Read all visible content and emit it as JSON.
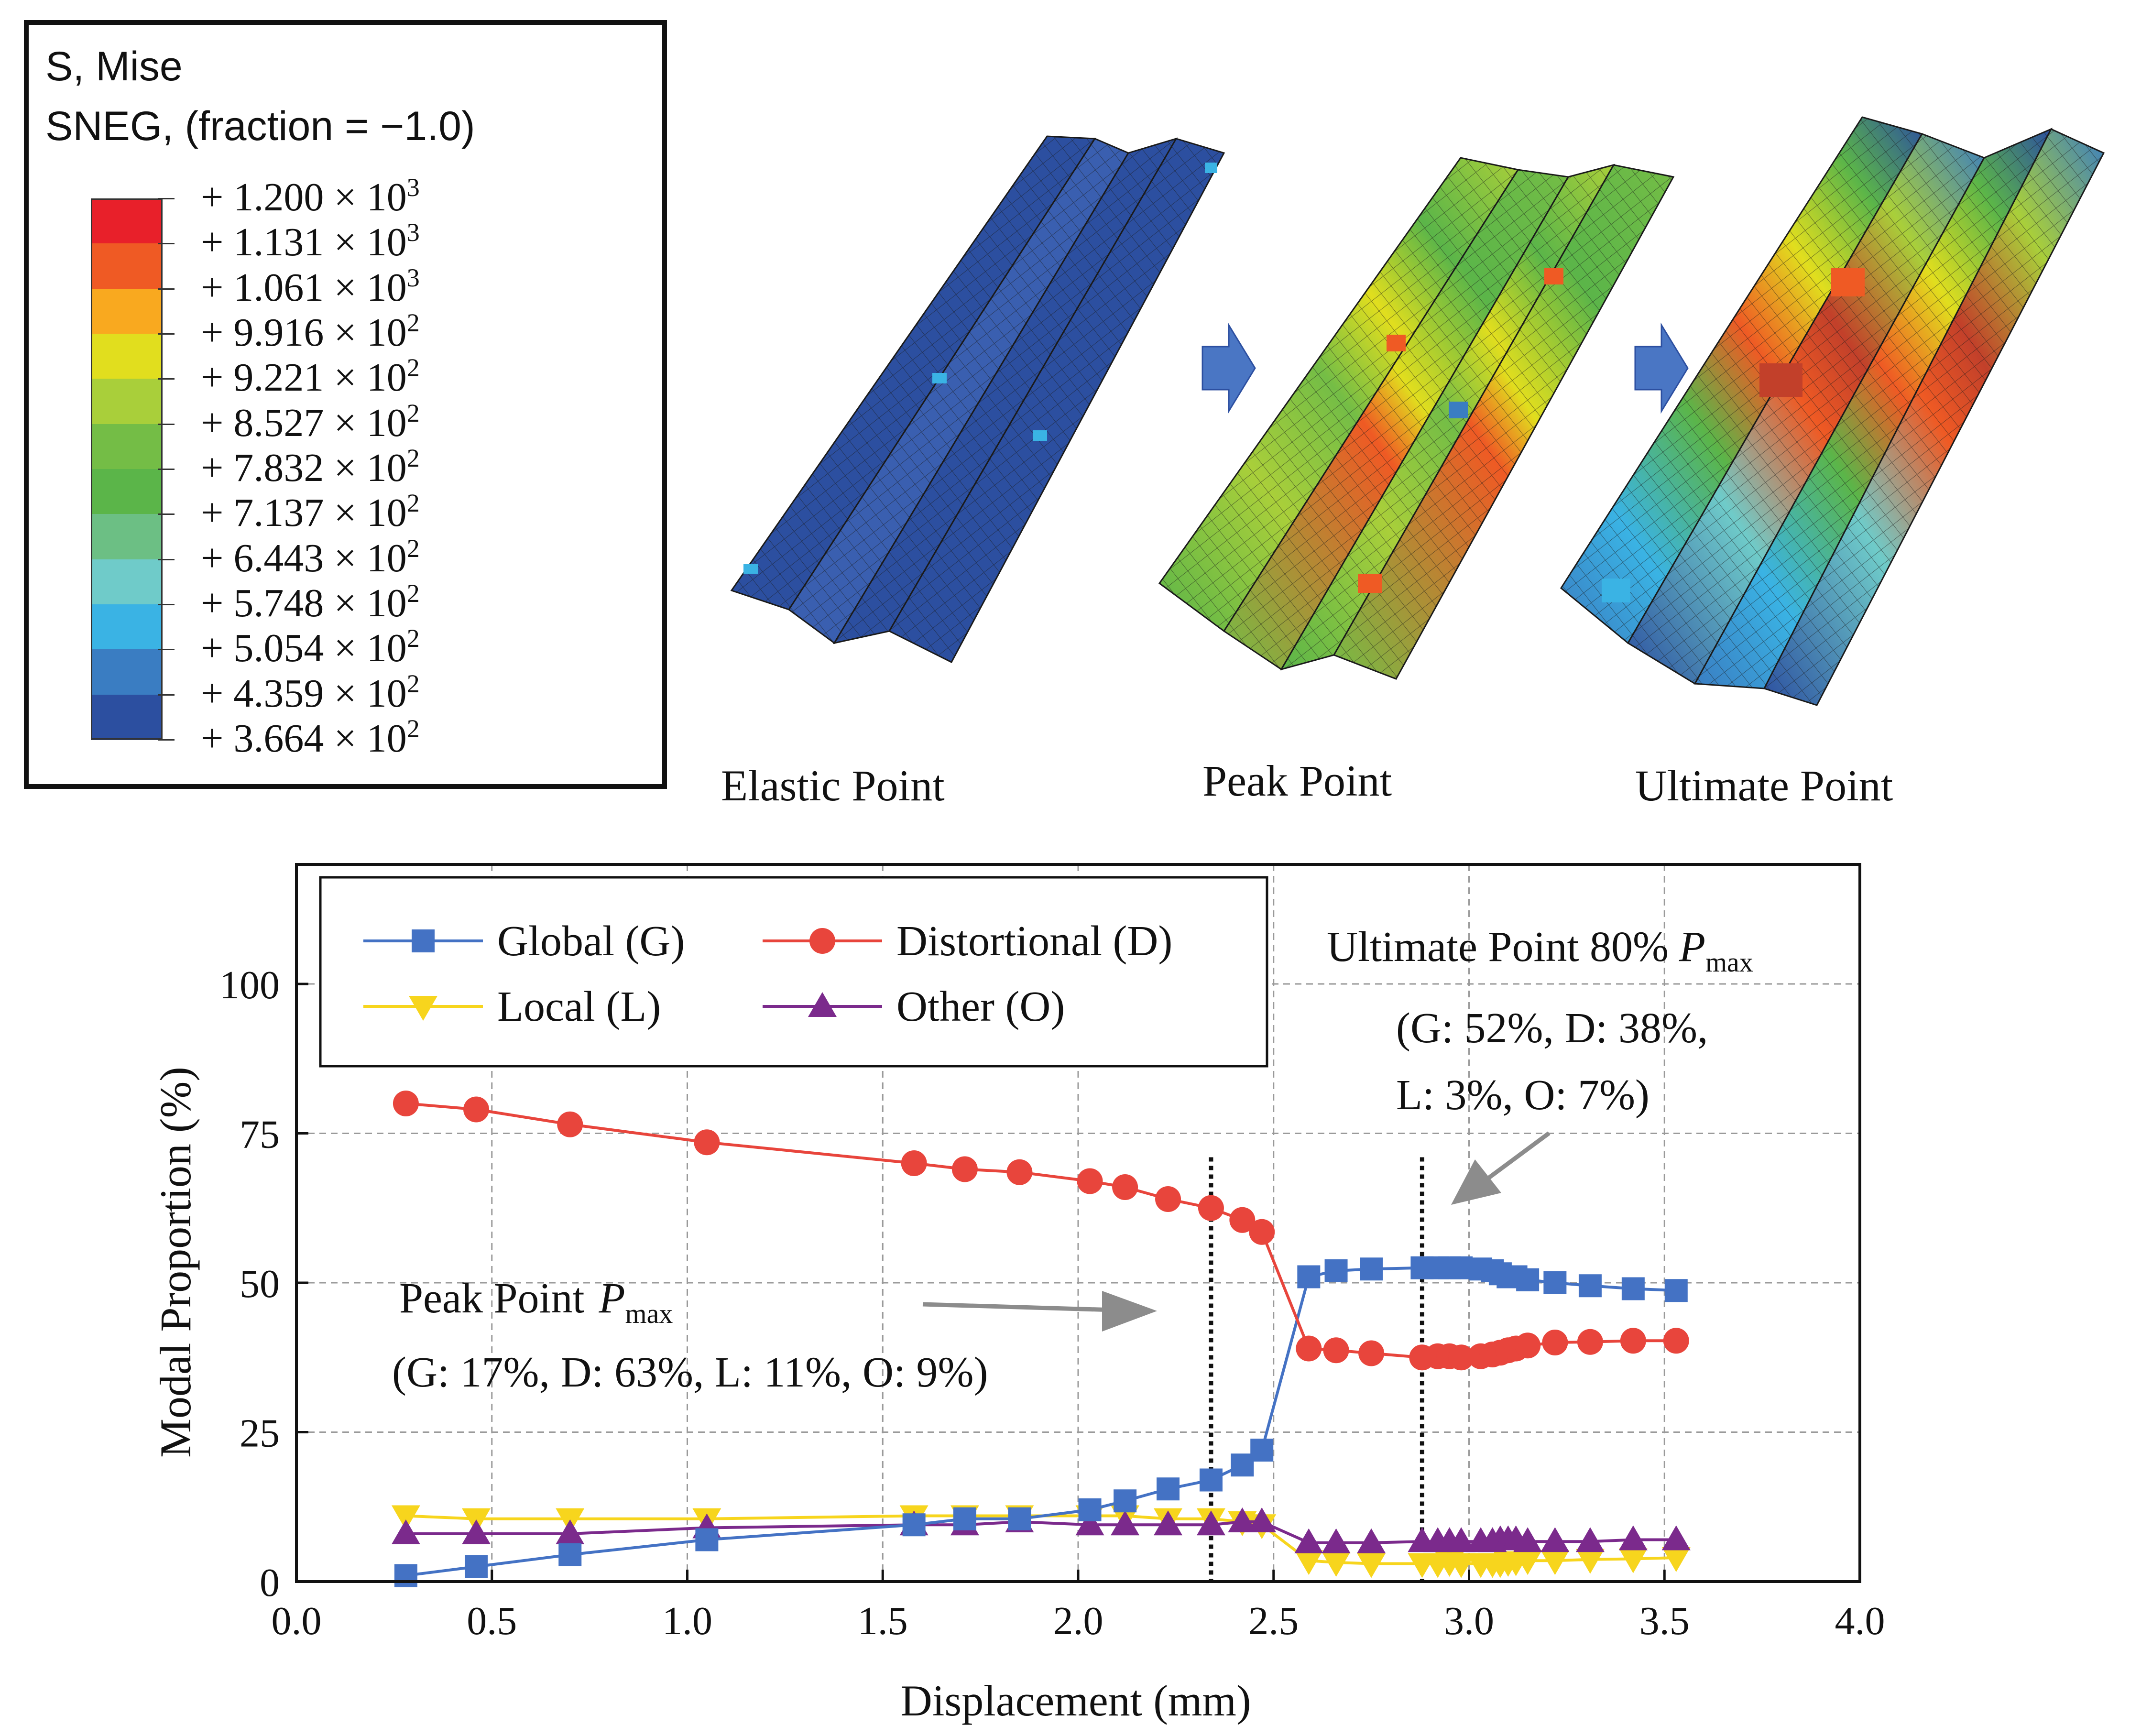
{
  "legend": {
    "title_line1": "S, Mise",
    "title_line2": "SNEG, (fraction = −1.0)",
    "levels": [
      {
        "label": "+ 1.200 × 10",
        "exp": "3",
        "color": "#e8202a"
      },
      {
        "label": "+ 1.131 × 10",
        "exp": "3",
        "color": "#ef5a24"
      },
      {
        "label": "+ 1.061 × 10",
        "exp": "3",
        "color": "#f9a91f"
      },
      {
        "label": "+ 9.916 × 10",
        "exp": "2",
        "color": "#e1de1e"
      },
      {
        "label": "+ 9.221 × 10",
        "exp": "2",
        "color": "#a9cf3a"
      },
      {
        "label": "+ 8.527 × 10",
        "exp": "2",
        "color": "#74bd46"
      },
      {
        "label": "+ 7.832 × 10",
        "exp": "2",
        "color": "#5bb549"
      },
      {
        "label": "+ 7.137 × 10",
        "exp": "2",
        "color": "#6cbf84"
      },
      {
        "label": "+ 6.443 × 10",
        "exp": "2",
        "color": "#6fcbc9"
      },
      {
        "label": "+ 5.748 × 10",
        "exp": "2",
        "color": "#3ab3e4"
      },
      {
        "label": "+ 5.054 × 10",
        "exp": "2",
        "color": "#3a7dc2"
      },
      {
        "label": "+ 4.359 × 10",
        "exp": "2",
        "color": "#2c4fa0"
      },
      {
        "label": "+ 3.664 × 10",
        "exp": "2",
        "color": "#2c4fa0"
      }
    ]
  },
  "mesh_captions": {
    "elastic": "Elastic Point",
    "peak": "Peak Point",
    "ultimate": "Ultimate Point"
  },
  "colors": {
    "global": "#4472c4",
    "distortional": "#e8453c",
    "local": "#f7d51d",
    "other": "#7b2a8c",
    "arrow": "#8c8c8c",
    "stage_arrow": "#4a76c4"
  },
  "chart_data": {
    "type": "line",
    "xlabel": "Displacement (mm)",
    "ylabel": "Modal Proportion (%)",
    "xlim": [
      0.0,
      4.0
    ],
    "ylim": [
      0,
      120
    ],
    "xticks": [
      "0.0",
      "0.5",
      "1.0",
      "1.5",
      "2.0",
      "2.5",
      "3.0",
      "3.5",
      "4.0"
    ],
    "yticks": [
      "0",
      "25",
      "50",
      "75",
      "100"
    ],
    "grid": true,
    "legend_position": "top-left",
    "series": [
      {
        "name": "Global (G)",
        "key": "global",
        "marker": "square",
        "x": [
          0.28,
          0.46,
          0.7,
          1.05,
          1.58,
          1.71,
          1.85,
          2.03,
          2.12,
          2.23,
          2.34,
          2.42,
          2.47,
          2.59,
          2.66,
          2.75,
          2.88,
          2.92,
          2.95,
          2.98,
          3.03,
          3.06,
          3.08,
          3.1,
          3.12,
          3.15,
          3.22,
          3.31,
          3.42,
          3.53
        ],
        "y": [
          1,
          2.5,
          4.5,
          7,
          9.5,
          10.5,
          10.5,
          12,
          13.5,
          15.5,
          17,
          19.5,
          22,
          51,
          52,
          52.3,
          52.5,
          52.5,
          52.5,
          52.5,
          52.3,
          52,
          51.5,
          51,
          51,
          50.5,
          50,
          49.5,
          49,
          48.7
        ]
      },
      {
        "name": "Distortional (D)",
        "key": "distortional",
        "marker": "circle",
        "x": [
          0.28,
          0.46,
          0.7,
          1.05,
          1.58,
          1.71,
          1.85,
          2.03,
          2.12,
          2.23,
          2.34,
          2.42,
          2.47,
          2.59,
          2.66,
          2.75,
          2.88,
          2.92,
          2.95,
          2.98,
          3.03,
          3.06,
          3.08,
          3.1,
          3.12,
          3.15,
          3.22,
          3.31,
          3.42,
          3.53
        ],
        "y": [
          80,
          79,
          76.5,
          73.5,
          70,
          69,
          68.5,
          67,
          66,
          64,
          62.5,
          60.5,
          58.5,
          39,
          38.7,
          38.2,
          37.5,
          37.7,
          37.7,
          37.5,
          37.7,
          38,
          38.3,
          38.7,
          39,
          39.5,
          40,
          40.1,
          40.3,
          40.3
        ]
      },
      {
        "name": "Local (L)",
        "key": "local",
        "marker": "triangle-down",
        "x": [
          0.28,
          0.46,
          0.7,
          1.05,
          1.58,
          1.71,
          1.85,
          2.03,
          2.12,
          2.23,
          2.34,
          2.42,
          2.47,
          2.59,
          2.66,
          2.75,
          2.88,
          2.92,
          2.95,
          2.98,
          3.03,
          3.06,
          3.08,
          3.1,
          3.12,
          3.15,
          3.22,
          3.31,
          3.42,
          3.53
        ],
        "y": [
          11,
          10.5,
          10.5,
          10.5,
          11,
          11,
          11,
          11,
          11,
          10.5,
          10.5,
          10,
          9.5,
          3.5,
          3.2,
          3,
          3,
          3,
          3.2,
          3,
          3,
          3,
          3,
          3.2,
          3.3,
          3.5,
          3.5,
          3.7,
          3.8,
          4
        ]
      },
      {
        "name": "Other (O)",
        "key": "other",
        "marker": "triangle-up",
        "x": [
          0.28,
          0.46,
          0.7,
          1.05,
          1.58,
          1.71,
          1.85,
          2.03,
          2.12,
          2.23,
          2.34,
          2.42,
          2.47,
          2.59,
          2.66,
          2.75,
          2.88,
          2.92,
          2.95,
          2.98,
          3.03,
          3.06,
          3.08,
          3.1,
          3.12,
          3.15,
          3.22,
          3.31,
          3.42,
          3.53
        ],
        "y": [
          8,
          8,
          8,
          9,
          9.5,
          9.5,
          10,
          9.5,
          9.5,
          9.5,
          9.5,
          10,
          10,
          6.5,
          6.5,
          6.5,
          6.7,
          6.7,
          6.7,
          6.7,
          6.7,
          6.7,
          7,
          7,
          7,
          6.7,
          6.7,
          6.7,
          7,
          7
        ]
      }
    ],
    "vlines": [
      {
        "x": 2.34,
        "label": "peak"
      },
      {
        "x": 2.88,
        "label": "ultimate"
      }
    ],
    "annotations": {
      "peak_title": "Peak Point",
      "peak_p": "P",
      "peak_sub": "max",
      "peak_values": "(G: 17%, D: 63%, L: 11%, O: 9%)",
      "ult_title": "Ultimate Point 80%",
      "ult_p": "P",
      "ult_sub": "max",
      "ult_line2": "(G: 52%, D: 38%,",
      "ult_line3": "L: 3%, O: 7%)"
    }
  }
}
